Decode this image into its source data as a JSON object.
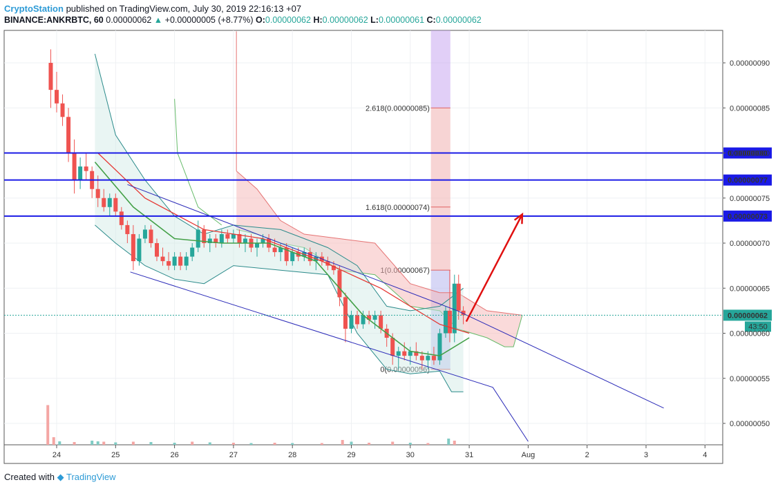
{
  "header": {
    "brand": "CryptoStation",
    "published": "published on TradingView.com, July 30, 2019 22:16:13 +07",
    "symbol": "BINANCE:ANKRBTC, 60",
    "last": "0.00000062",
    "change": "+0.00000005 (+8.77%)",
    "o_label": "O:",
    "o_value": "0.00000062",
    "h_label": "H:",
    "h_value": "0.00000062",
    "l_label": "L:",
    "l_value": "0.00000061",
    "c_label": "C:",
    "c_value": "0.00000062"
  },
  "footer": {
    "created_with": "Created with",
    "brand": "TradingView"
  },
  "colors": {
    "up": "#26a69a",
    "down": "#ef5350",
    "level_line": "#1a1ae6",
    "channel": "#2a2ab8",
    "fib_red": "#e06060",
    "fib_purple": "#c9a8f0",
    "arrow": "#e01010",
    "last_price_badge": "#26a69a",
    "level_badge": "#1a1ae6"
  },
  "chart_data": {
    "type": "candlestick",
    "x_ticks": [
      "24",
      "25",
      "26",
      "27",
      "28",
      "29",
      "30",
      "31",
      "Aug",
      "2",
      "3",
      "4"
    ],
    "y_ticks": [
      "0.00000090",
      "0.00000085",
      "0.00000080",
      "0.00000075",
      "0.00000070",
      "0.00000065",
      "0.00000060",
      "0.00000055",
      "0.00000050"
    ],
    "y_tick_values": [
      90,
      85,
      80,
      75,
      70,
      65,
      60,
      55,
      50
    ],
    "ylim": [
      47.5,
      93.5
    ],
    "y_unit_note": "values in 1e-8 BTC (satoshi)",
    "horizontal_levels": [
      {
        "value": 80,
        "label": "0.00000080"
      },
      {
        "value": 77,
        "label": "0.00000077"
      },
      {
        "value": 73,
        "label": "0.00000073"
      }
    ],
    "last_price": {
      "value": 62,
      "label": "0.00000062",
      "countdown": "43:50"
    },
    "fib_levels": [
      {
        "ratio": "2.618",
        "value": 85,
        "label": "2.618(0.00000085)"
      },
      {
        "ratio": "1.618",
        "value": 74,
        "label": "1.618(0.00000074)"
      },
      {
        "ratio": "1",
        "value": 67,
        "label": "1(0.00000067)"
      },
      {
        "ratio": "0",
        "value": 56,
        "label": "0(0.00000056)"
      }
    ],
    "channel": {
      "upper": [
        [
          25.2,
          76.5
        ],
        [
          30.8,
          62.5
        ],
        [
          34.3,
          51.7
        ]
      ],
      "lower": [
        [
          25.25,
          66.8
        ],
        [
          31.4,
          54.0
        ],
        [
          32.0,
          48.0
        ]
      ]
    },
    "arrow": {
      "from": [
        30.95,
        61.3
      ],
      "to": [
        31.9,
        73.2
      ]
    },
    "candles": [
      [
        23.9,
        90.0,
        91.5,
        85.0,
        87.0
      ],
      [
        24.0,
        87.0,
        89.0,
        84.5,
        85.5
      ],
      [
        24.1,
        85.5,
        86.5,
        83.0,
        84.0
      ],
      [
        24.2,
        84.0,
        85.0,
        79.0,
        80.0
      ],
      [
        24.3,
        80.0,
        81.5,
        75.5,
        77.0
      ],
      [
        24.4,
        77.0,
        79.5,
        76.0,
        78.5
      ],
      [
        24.5,
        78.5,
        80.0,
        77.0,
        78.0
      ],
      [
        24.6,
        78.0,
        78.5,
        75.0,
        76.0
      ],
      [
        24.7,
        76.0,
        77.5,
        74.0,
        75.0
      ],
      [
        24.8,
        75.0,
        76.0,
        73.5,
        74.0
      ],
      [
        24.9,
        74.0,
        75.5,
        73.0,
        75.0
      ],
      [
        25.0,
        75.0,
        75.5,
        73.0,
        73.5
      ],
      [
        25.1,
        73.5,
        74.0,
        71.5,
        72.0
      ],
      [
        25.2,
        72.0,
        72.5,
        70.0,
        71.0
      ],
      [
        25.3,
        71.0,
        72.0,
        67.0,
        68.0
      ],
      [
        25.4,
        68.0,
        71.0,
        67.5,
        70.5
      ],
      [
        25.5,
        70.5,
        72.0,
        70.0,
        71.5
      ],
      [
        25.6,
        71.5,
        72.0,
        69.5,
        70.0
      ],
      [
        25.7,
        70.0,
        70.5,
        68.0,
        68.5
      ],
      [
        25.8,
        68.5,
        69.5,
        67.5,
        68.0
      ],
      [
        25.9,
        68.0,
        69.0,
        67.0,
        67.5
      ],
      [
        26.0,
        67.5,
        69.0,
        67.0,
        68.5
      ],
      [
        26.1,
        68.5,
        69.0,
        67.0,
        67.5
      ],
      [
        26.2,
        67.5,
        69.0,
        67.0,
        68.5
      ],
      [
        26.3,
        68.5,
        70.0,
        68.0,
        69.5
      ],
      [
        26.4,
        69.5,
        72.5,
        69.0,
        71.5
      ],
      [
        26.5,
        71.5,
        72.0,
        69.5,
        70.0
      ],
      [
        26.6,
        70.0,
        71.0,
        69.0,
        70.5
      ],
      [
        26.7,
        70.5,
        71.0,
        69.5,
        70.0
      ],
      [
        26.8,
        70.0,
        71.5,
        69.5,
        71.0
      ],
      [
        26.9,
        71.0,
        71.5,
        70.0,
        70.5
      ],
      [
        27.0,
        70.5,
        71.5,
        70.0,
        71.0
      ],
      [
        27.1,
        71.0,
        71.5,
        69.5,
        70.0
      ],
      [
        27.2,
        70.0,
        71.0,
        69.0,
        70.5
      ],
      [
        27.3,
        70.5,
        71.0,
        69.0,
        69.5
      ],
      [
        27.4,
        69.5,
        70.5,
        68.5,
        70.0
      ],
      [
        27.5,
        70.0,
        71.0,
        69.5,
        70.5
      ],
      [
        27.6,
        70.5,
        71.0,
        69.0,
        69.5
      ],
      [
        27.7,
        69.5,
        70.5,
        68.5,
        69.0
      ],
      [
        27.8,
        69.0,
        70.0,
        68.0,
        69.5
      ],
      [
        27.9,
        69.5,
        70.0,
        67.5,
        68.0
      ],
      [
        28.0,
        68.0,
        69.5,
        67.5,
        69.0
      ],
      [
        28.1,
        69.0,
        69.5,
        68.0,
        68.5
      ],
      [
        28.2,
        68.5,
        69.5,
        68.0,
        69.0
      ],
      [
        28.3,
        69.0,
        69.5,
        67.5,
        68.0
      ],
      [
        28.4,
        68.0,
        69.0,
        67.0,
        68.5
      ],
      [
        28.5,
        68.5,
        69.0,
        67.5,
        68.0
      ],
      [
        28.6,
        68.0,
        68.5,
        67.0,
        67.5
      ],
      [
        28.7,
        67.5,
        68.0,
        66.5,
        67.0
      ],
      [
        28.8,
        67.0,
        67.5,
        63.0,
        64.0
      ],
      [
        28.9,
        64.0,
        64.5,
        59.0,
        60.5
      ],
      [
        29.0,
        60.5,
        62.5,
        60.0,
        62.0
      ],
      [
        29.1,
        62.0,
        62.5,
        60.5,
        61.0
      ],
      [
        29.2,
        61.0,
        62.5,
        60.5,
        62.0
      ],
      [
        29.3,
        62.0,
        62.5,
        61.0,
        61.5
      ],
      [
        29.4,
        61.5,
        62.5,
        60.5,
        62.0
      ],
      [
        29.5,
        62.0,
        62.5,
        60.0,
        60.5
      ],
      [
        29.6,
        60.5,
        61.0,
        58.5,
        59.5
      ],
      [
        29.7,
        59.5,
        60.0,
        56.5,
        57.5
      ],
      [
        29.8,
        57.5,
        58.5,
        56.0,
        58.0
      ],
      [
        29.9,
        58.0,
        59.0,
        57.0,
        57.5
      ],
      [
        30.0,
        57.5,
        58.5,
        56.5,
        58.0
      ],
      [
        30.1,
        58.0,
        59.0,
        57.0,
        57.5
      ],
      [
        30.2,
        57.5,
        58.0,
        56.0,
        57.0
      ],
      [
        30.3,
        57.0,
        58.0,
        56.0,
        57.5
      ],
      [
        30.4,
        57.5,
        58.5,
        56.5,
        57.0
      ],
      [
        30.5,
        57.0,
        60.5,
        56.5,
        60.0
      ],
      [
        30.6,
        60.0,
        63.0,
        59.5,
        62.5
      ],
      [
        30.67,
        62.5,
        67.0,
        59.0,
        60.0
      ],
      [
        30.75,
        60.0,
        66.5,
        59.0,
        65.5
      ],
      [
        30.82,
        65.5,
        66.5,
        61.5,
        62.5
      ],
      [
        30.9,
        62.5,
        63.0,
        61.0,
        62.0
      ]
    ],
    "volume": [
      [
        23.85,
        11.5,
        "down"
      ],
      [
        23.95,
        2.2,
        "down"
      ],
      [
        24.05,
        1.0,
        "up"
      ],
      [
        24.3,
        0.8,
        "down"
      ],
      [
        24.6,
        1.2,
        "up"
      ],
      [
        24.7,
        1.0,
        "up"
      ],
      [
        24.8,
        0.9,
        "down"
      ],
      [
        25.0,
        0.7,
        "up"
      ],
      [
        25.3,
        0.9,
        "down"
      ],
      [
        25.6,
        0.8,
        "up"
      ],
      [
        26.0,
        0.6,
        "up"
      ],
      [
        26.3,
        0.9,
        "down"
      ],
      [
        26.6,
        0.7,
        "up"
      ],
      [
        27.0,
        0.6,
        "down"
      ],
      [
        27.3,
        0.5,
        "up"
      ],
      [
        27.7,
        0.6,
        "down"
      ],
      [
        28.0,
        0.5,
        "up"
      ],
      [
        28.5,
        0.5,
        "down"
      ],
      [
        28.85,
        1.4,
        "down"
      ],
      [
        29.0,
        0.9,
        "up"
      ],
      [
        29.3,
        0.6,
        "down"
      ],
      [
        29.7,
        0.9,
        "down"
      ],
      [
        30.0,
        0.6,
        "up"
      ],
      [
        30.3,
        0.5,
        "down"
      ],
      [
        30.65,
        1.8,
        "up"
      ],
      [
        30.75,
        1.2,
        "down"
      ]
    ],
    "red_ma": [
      [
        24.7,
        80
      ],
      [
        25.5,
        75
      ],
      [
        26.5,
        71.5
      ],
      [
        27.5,
        70.5
      ],
      [
        28.5,
        68
      ],
      [
        29.5,
        65
      ],
      [
        30.5,
        61
      ],
      [
        31.0,
        60
      ]
    ],
    "green_ma": [
      [
        24.65,
        79
      ],
      [
        25.3,
        74
      ],
      [
        26.0,
        70.5
      ],
      [
        26.8,
        70
      ],
      [
        27.6,
        70
      ],
      [
        28.4,
        68
      ],
      [
        29.2,
        62
      ],
      [
        30.0,
        58
      ],
      [
        30.5,
        57.5
      ],
      [
        31.0,
        59.5
      ]
    ],
    "bb_upper": [
      [
        24.65,
        91
      ],
      [
        25.0,
        82
      ],
      [
        25.5,
        77
      ],
      [
        26.0,
        73
      ],
      [
        26.5,
        71
      ],
      [
        27.0,
        72
      ],
      [
        27.8,
        71.5
      ],
      [
        28.6,
        69.5
      ],
      [
        29.1,
        67.5
      ],
      [
        29.6,
        63
      ],
      [
        30.0,
        62.5
      ],
      [
        30.5,
        63
      ],
      [
        30.9,
        65
      ]
    ],
    "bb_lower": [
      [
        24.65,
        72
      ],
      [
        25.0,
        70
      ],
      [
        25.5,
        67.5
      ],
      [
        26.0,
        66
      ],
      [
        26.5,
        65.5
      ],
      [
        27.0,
        67.5
      ],
      [
        27.8,
        67
      ],
      [
        28.6,
        66.5
      ],
      [
        29.1,
        60
      ],
      [
        29.6,
        56
      ],
      [
        30.0,
        55.5
      ],
      [
        30.5,
        55.8
      ],
      [
        30.7,
        53.5
      ],
      [
        30.9,
        53.5
      ]
    ],
    "cloud_top": [
      [
        27.05,
        78
      ],
      [
        27.4,
        76
      ],
      [
        27.8,
        72.5
      ],
      [
        28.2,
        71
      ],
      [
        28.8,
        70.5
      ],
      [
        29.4,
        70
      ],
      [
        30.0,
        65.5
      ],
      [
        30.5,
        64.5
      ],
      [
        30.8,
        64.5
      ],
      [
        31.3,
        62.5
      ],
      [
        31.9,
        62
      ]
    ],
    "cloud_bottom": [
      [
        27.05,
        71.5
      ],
      [
        27.4,
        71
      ],
      [
        27.8,
        70
      ],
      [
        28.2,
        69.5
      ],
      [
        28.8,
        67
      ],
      [
        29.4,
        66.5
      ],
      [
        30.0,
        63
      ],
      [
        30.5,
        62.5
      ],
      [
        30.8,
        60.5
      ],
      [
        31.3,
        59.5
      ],
      [
        31.6,
        58.5
      ],
      [
        31.75,
        58.5
      ],
      [
        31.9,
        62
      ]
    ]
  }
}
